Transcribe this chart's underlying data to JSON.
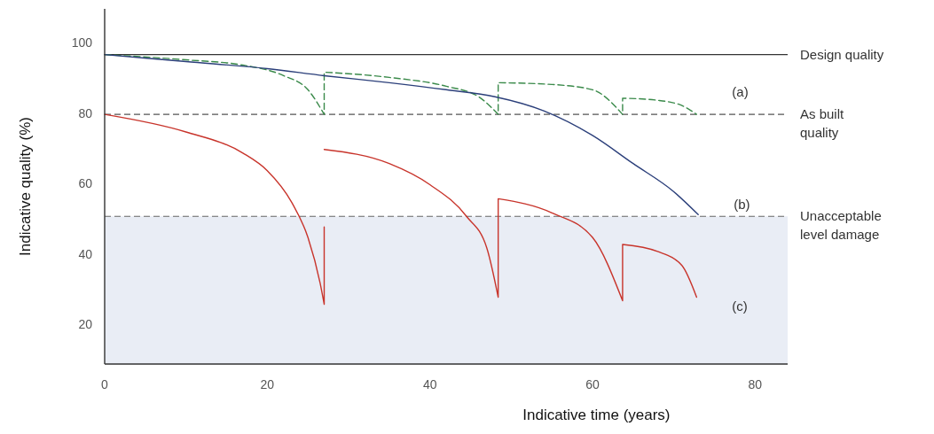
{
  "chart_data": {
    "type": "line",
    "xlabel": "Indicative time (years)",
    "ylabel": "Indicative quality (%)",
    "xlim": [
      0,
      84
    ],
    "ylim": [
      9,
      110
    ],
    "xticks": [
      0,
      20,
      40,
      60,
      80
    ],
    "yticks": [
      20,
      40,
      60,
      80,
      100
    ],
    "grid": false,
    "marker": "none",
    "series": [
      {
        "name": "(a)",
        "color": "#3a8a4a",
        "line_style": "dashed",
        "x": [
          0,
          10,
          17,
          22,
          25,
          27,
          27,
          35,
          42,
          46,
          48.4,
          48.4,
          55,
          60,
          63.7,
          63.7,
          68,
          71,
          72.8
        ],
        "values": [
          97,
          95.5,
          94,
          91,
          87,
          80,
          92,
          90.5,
          88,
          85,
          80,
          89,
          88.5,
          87,
          80,
          84.6,
          84,
          82.5,
          80
        ]
      },
      {
        "name": "(b)",
        "color": "#2b3f7a",
        "line_style": "solid",
        "x": [
          0,
          10,
          20,
          27,
          35,
          42,
          48,
          54,
          60,
          65,
          70,
          73
        ],
        "values": [
          97,
          95,
          93,
          91,
          89,
          87,
          85,
          81,
          74,
          66,
          58,
          51.5
        ]
      },
      {
        "name": "(c)",
        "color": "#c8342b",
        "line_style": "solid",
        "x": [
          0,
          10,
          17,
          20,
          23,
          25,
          26.5,
          27,
          27,
          null,
          27,
          35,
          40,
          44.5,
          47,
          48.4,
          48.4,
          55,
          60,
          63.7,
          63.7,
          68,
          71,
          72.8
        ],
        "values": [
          80,
          75,
          69,
          64,
          55,
          45,
          32,
          26,
          48,
          null,
          70,
          66,
          60,
          51,
          42,
          28,
          56,
          52,
          45,
          27,
          43,
          41,
          37,
          28
        ]
      }
    ],
    "ref_lines": [
      {
        "axis": "y",
        "value": 97,
        "label": "Design quality",
        "color": "#333333",
        "line_style": "solid"
      },
      {
        "axis": "y",
        "value": 80,
        "label": "As built quality",
        "color": "#555555",
        "line_style": "dashed"
      },
      {
        "axis": "y",
        "value": 51,
        "label": "Unacceptable level damage",
        "color": "#666666",
        "line_style": "dashed"
      }
    ],
    "bands": [
      {
        "axis": "y",
        "from": 9,
        "to": 51,
        "color": "#e9edf5"
      }
    ]
  }
}
